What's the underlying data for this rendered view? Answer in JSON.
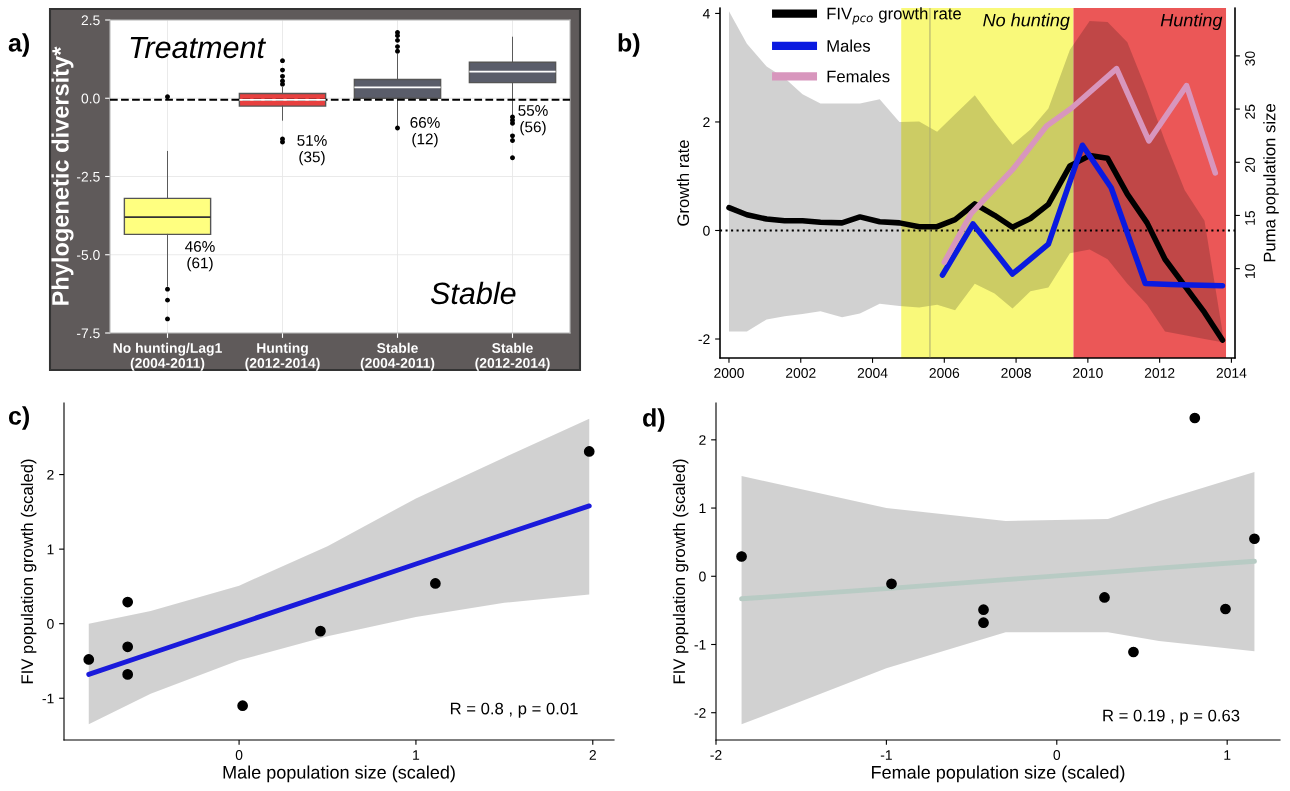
{
  "chart_data": [
    {
      "type": "box",
      "ylabel": "Phylogenetic diversity*",
      "categories": [
        "No hunting/Lag1\n(2004-2011)",
        "Hunting\n(2012-2014)",
        "Stable\n(2004-2011)",
        "Stable\n(2012-2014)"
      ],
      "colors": [
        "#ffff80",
        "#e8403f",
        "#5a5d6a",
        "#5a5d6a"
      ],
      "boxes": [
        {
          "low": -6.0,
          "q1": -4.35,
          "median": -3.8,
          "q3": -3.2,
          "high": -1.7,
          "outliers": [
            0.05,
            -6.1,
            -6.45,
            -7.05
          ]
        },
        {
          "low": -0.7,
          "q1": -0.25,
          "median": -0.05,
          "q3": 0.15,
          "high": 0.35,
          "outliers": [
            0.45,
            0.55,
            0.7,
            0.9,
            1.2,
            -1.3,
            -1.4
          ]
        },
        {
          "low": -0.9,
          "q1": 0.0,
          "median": 0.35,
          "q3": 0.6,
          "high": 1.4,
          "outliers": [
            1.5,
            1.65,
            1.85,
            2.0,
            2.1,
            -0.95
          ]
        },
        {
          "low": -0.55,
          "q1": 0.5,
          "median": 0.85,
          "q3": 1.15,
          "high": 1.95,
          "outliers": [
            -0.6,
            -0.7,
            -0.8,
            -1.2,
            -1.35,
            -1.9
          ]
        }
      ],
      "ylim": [
        -7.5,
        2.5
      ],
      "yticks": [
        {
          "value": -7.5,
          "label": "-7.5"
        },
        {
          "value": -5,
          "label": "-5.0"
        },
        {
          "value": -2.5,
          "label": "-2.5"
        },
        {
          "value": 0,
          "label": "0.0"
        },
        {
          "value": 2.5,
          "label": "2.5"
        }
      ],
      "ref_lines": [
        {
          "axis": "y",
          "value": -0.05,
          "line_style": "dashed",
          "color": "#000000"
        }
      ],
      "grid": true,
      "annotations": [
        "a)",
        "Treatment",
        "Stable",
        "46%\n(61)",
        "51%\n(35)",
        "66%\n(12)",
        "55%\n(56)"
      ]
    },
    {
      "type": "line",
      "ylabel": "Growth rate",
      "y2label": "Puma population size",
      "series": [
        {
          "name": "FIV$_{pco}$ growth rate",
          "color": "#000000",
          "x": [
            2000.0,
            2000.5,
            2001.05,
            2001.55,
            2002.05,
            2002.55,
            2003.15,
            2003.65,
            2004.2,
            2004.75,
            2005.3,
            2005.8,
            2006.3,
            2006.85,
            2007.4,
            2007.9,
            2008.4,
            2008.9,
            2009.5,
            2010.05,
            2010.55,
            2011.1,
            2011.65,
            2012.15,
            2012.7,
            2013.25,
            2013.75
          ],
          "values": [
            0.42,
            0.29,
            0.21,
            0.18,
            0.18,
            0.15,
            0.14,
            0.25,
            0.16,
            0.14,
            0.07,
            0.07,
            0.2,
            0.49,
            0.28,
            0.06,
            0.22,
            0.48,
            1.19,
            1.38,
            1.33,
            0.67,
            0.14,
            -0.53,
            -1.02,
            -1.51,
            -2.02
          ],
          "upper": [
            4.04,
            3.44,
            3.02,
            2.81,
            2.51,
            2.34,
            2.34,
            2.34,
            2.42,
            2.0,
            2.01,
            1.82,
            2.14,
            2.49,
            2.0,
            1.58,
            1.86,
            2.25,
            3.33,
            3.86,
            3.84,
            3.47,
            2.56,
            1.65,
            0.74,
            0.18,
            -1.86
          ],
          "lower": [
            -1.86,
            -1.86,
            -1.64,
            -1.58,
            -1.54,
            -1.49,
            -1.6,
            -1.53,
            -1.35,
            -1.39,
            -1.42,
            -1.37,
            -1.47,
            -0.98,
            -1.16,
            -1.44,
            -1.12,
            -1.05,
            -0.42,
            -0.35,
            -0.53,
            -0.98,
            -1.37,
            -1.86,
            -1.93,
            -2.0,
            -2.06
          ]
        },
        {
          "name": "Males",
          "color": "#0a1ae0",
          "axis": "y2",
          "x": [
            2005.95,
            2006.8,
            2007.9,
            2008.9,
            2009.85,
            2010.65,
            2011.6,
            2012.3,
            2013.75
          ],
          "values": [
            9.4,
            14.2,
            9.5,
            12.3,
            21.6,
            17.6,
            8.6,
            8.5,
            8.4
          ]
        },
        {
          "name": "Females",
          "color": "#d896bd",
          "axis": "y2",
          "x": [
            2006.0,
            2006.75,
            2007.9,
            2008.85,
            2009.55,
            2010.8,
            2011.7,
            2012.75,
            2013.55
          ],
          "values": [
            10.6,
            15.2,
            19.3,
            23.4,
            25.1,
            28.8,
            22.0,
            27.2,
            19.0
          ]
        }
      ],
      "xlim": [
        1999.75,
        2014.1
      ],
      "xticks": [
        2000,
        2002,
        2004,
        2006,
        2008,
        2010,
        2012,
        2014
      ],
      "ylim": [
        -2.35,
        4.1
      ],
      "yticks": [
        -2,
        0,
        2,
        4
      ],
      "y2lim": [
        1.6,
        34.5
      ],
      "y2ticks": [
        10,
        15,
        20,
        25,
        30
      ],
      "bands": [
        {
          "axis": "x",
          "from": 2004.8,
          "to": 2009.6,
          "label": "No hunting",
          "color": "#f9f97a"
        },
        {
          "axis": "x",
          "from": 2009.6,
          "to": 2013.85,
          "label": "Hunting",
          "color": "#eb5757"
        }
      ],
      "ref_lines": [
        {
          "axis": "y",
          "value": 0,
          "line_style": "dotted",
          "color": "#000000"
        },
        {
          "axis": "x",
          "value": 2005.6,
          "color": "#b0b070"
        }
      ],
      "legend": "top left",
      "annotations": [
        "b)"
      ]
    },
    {
      "type": "scatter",
      "xlabel": "Male population size (scaled)",
      "ylabel": "FIV population growth (scaled)",
      "series": [
        {
          "type": "scatter",
          "marker": "circle",
          "color": "#000000",
          "x": [
            -0.85,
            -0.63,
            -0.63,
            -0.63,
            0.02,
            0.46,
            1.11,
            1.98
          ],
          "values": [
            -0.48,
            0.29,
            -0.31,
            -0.68,
            -1.1,
            -0.1,
            0.54,
            2.31
          ]
        },
        {
          "type": "line",
          "color": "#1a1adb",
          "x": [
            -0.85,
            -0.5,
            0,
            0.5,
            1,
            1.5,
            1.98
          ],
          "values": [
            -0.68,
            -0.4,
            0.0,
            0.4,
            0.8,
            1.2,
            1.58
          ],
          "lower": [
            -1.35,
            -0.94,
            -0.49,
            -0.17,
            0.09,
            0.28,
            0.39
          ],
          "upper": [
            0.0,
            0.17,
            0.51,
            1.04,
            1.68,
            2.23,
            2.75
          ]
        }
      ],
      "xlim": [
        -0.99,
        2.12
      ],
      "xticks": [
        0,
        1,
        2
      ],
      "ylim": [
        -1.56,
        2.96
      ],
      "yticks": [
        -1,
        0,
        1,
        2
      ],
      "annotations": [
        "c)",
        "R = 0.8 , p = 0.01"
      ]
    },
    {
      "type": "scatter",
      "xlabel": "Female population size (scaled)",
      "ylabel": "FIV population growth (scaled)",
      "series": [
        {
          "type": "scatter",
          "marker": "circle",
          "color": "#000000",
          "x": [
            -1.85,
            -0.97,
            -0.43,
            -0.43,
            0.28,
            0.45,
            0.81,
            0.99,
            1.16
          ],
          "values": [
            0.29,
            -0.11,
            -0.49,
            -0.68,
            -0.31,
            -1.11,
            2.32,
            -0.48,
            0.55
          ]
        },
        {
          "type": "line",
          "color": "#b8cbc4",
          "x": [
            -1.85,
            -1,
            -0.3,
            0.3,
            0.6,
            1.16
          ],
          "values": [
            -0.33,
            -0.18,
            -0.05,
            0.06,
            0.12,
            0.22
          ],
          "lower": [
            -2.17,
            -1.35,
            -0.82,
            -0.82,
            -0.95,
            -1.1
          ],
          "upper": [
            1.47,
            1.0,
            0.81,
            0.84,
            1.1,
            1.53
          ]
        }
      ],
      "xlim": [
        -2.0,
        1.31
      ],
      "xticks": [
        -2,
        -1,
        0,
        1
      ],
      "ylim": [
        -2.4,
        2.54
      ],
      "yticks": [
        -2,
        -1,
        0,
        1,
        2
      ],
      "annotations": [
        "d)",
        "R = 0.19 , p = 0.63"
      ]
    }
  ]
}
